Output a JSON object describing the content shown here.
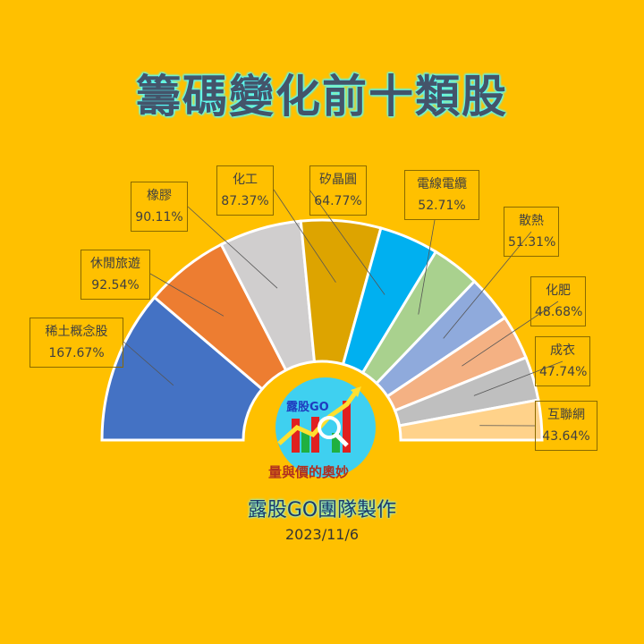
{
  "title": "籌碼變化前十類股",
  "credit": "露股GO團隊製作",
  "date": "2023/11/6",
  "logo": {
    "brand": "露股GO",
    "slogan": "量與價的奧妙"
  },
  "colors": {
    "background": "#FFC000"
  },
  "chart_data": {
    "type": "pie",
    "variant": "half-donut",
    "categories": [
      "稀土概念股",
      "休閒旅遊",
      "橡膠",
      "化工",
      "矽晶圓",
      "電線電纜",
      "散熱",
      "化肥",
      "成衣",
      "互聯網"
    ],
    "values": [
      167.67,
      92.54,
      90.11,
      87.37,
      64.77,
      52.71,
      51.31,
      48.68,
      47.74,
      43.64
    ],
    "value_labels": [
      "167.67%",
      "92.54%",
      "90.11%",
      "87.37%",
      "64.77%",
      "52.71%",
      "51.31%",
      "48.68%",
      "47.74%",
      "43.64%"
    ],
    "colors": [
      "#4472C4",
      "#ED7D31",
      "#D0CECE",
      "#DDA400",
      "#00B0F0",
      "#A9D18E",
      "#8FAADC",
      "#F4B183",
      "#BFBFBF",
      "#FFD28A"
    ],
    "legend": "none"
  }
}
